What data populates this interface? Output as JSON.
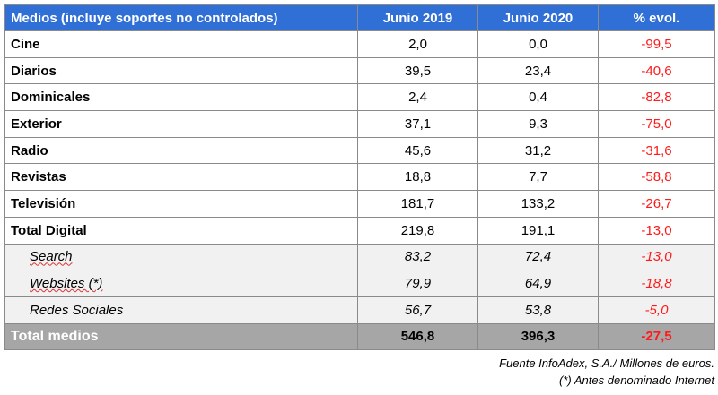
{
  "table": {
    "headers": [
      "Medios (incluye soportes no controlados)",
      "Junio 2019",
      "Junio 2020",
      "% evol."
    ],
    "rows": [
      {
        "medio": "Cine",
        "jun2019": "2,0",
        "jun2020": "0,0",
        "evol": "-99,5"
      },
      {
        "medio": "Diarios",
        "jun2019": "39,5",
        "jun2020": "23,4",
        "evol": "-40,6"
      },
      {
        "medio": "Dominicales",
        "jun2019": "2,4",
        "jun2020": "0,4",
        "evol": "-82,8"
      },
      {
        "medio": "Exterior",
        "jun2019": "37,1",
        "jun2020": "9,3",
        "evol": "-75,0"
      },
      {
        "medio": "Radio",
        "jun2019": "45,6",
        "jun2020": "31,2",
        "evol": "-31,6"
      },
      {
        "medio": "Revistas",
        "jun2019": "18,8",
        "jun2020": "7,7",
        "evol": "-58,8"
      },
      {
        "medio": "Televisión",
        "jun2019": "181,7",
        "jun2020": "133,2",
        "evol": "-26,7"
      },
      {
        "medio": "Total Digital",
        "jun2019": "219,8",
        "jun2020": "191,1",
        "evol": "-13,0"
      }
    ],
    "digital_rows": [
      {
        "medio": "Search",
        "jun2019": "83,2",
        "jun2020": "72,4",
        "evol": "-13,0"
      },
      {
        "medio": "Websites (*)",
        "jun2019": "79,9",
        "jun2020": "64,9",
        "evol": "-18,8"
      },
      {
        "medio": "Redes Sociales",
        "jun2019": "56,7",
        "jun2020": "53,8",
        "evol": "-5,0"
      }
    ],
    "total": {
      "medio": "Total medios",
      "jun2019": "546,8",
      "jun2020": "396,3",
      "evol": "-27,5"
    }
  },
  "footnotes": {
    "source": "Fuente InfoAdex, S.A./ Millones de euros.",
    "note": "(*) Antes denominado Internet"
  },
  "colors": {
    "header_bg": "#2f6fd6",
    "header_text": "#ffffff",
    "negative": "#ff1a1a",
    "subrow_bg": "#f1f1f1",
    "total_bg": "#a6a6a6"
  }
}
